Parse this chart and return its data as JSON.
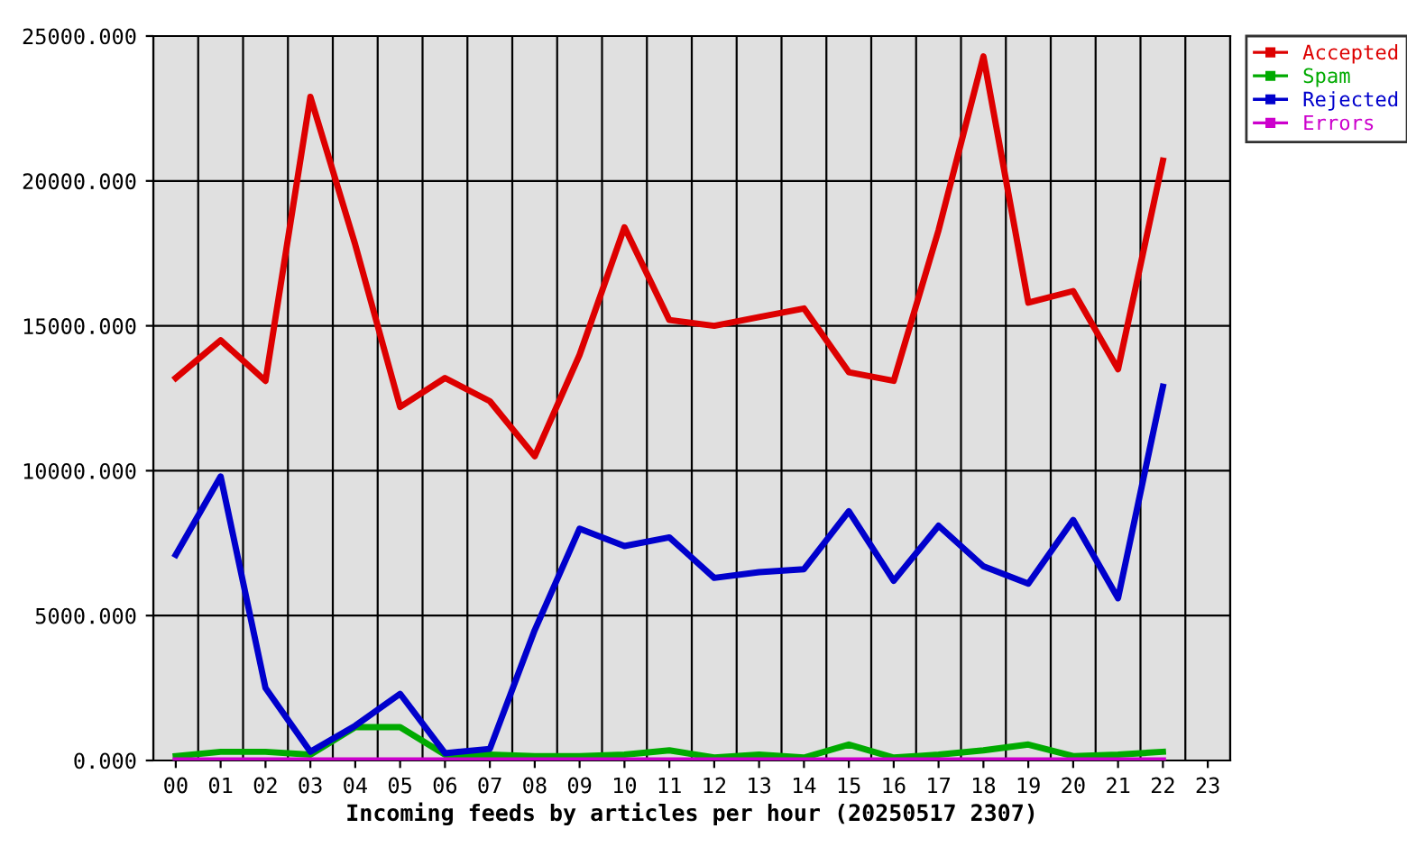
{
  "chart_data": {
    "type": "line",
    "xlabel": "Incoming feeds by articles per hour (20250517 2307)",
    "categories": [
      "00",
      "01",
      "02",
      "03",
      "04",
      "05",
      "06",
      "07",
      "08",
      "09",
      "10",
      "11",
      "12",
      "13",
      "14",
      "15",
      "16",
      "17",
      "18",
      "19",
      "20",
      "21",
      "22",
      "23"
    ],
    "series": [
      {
        "name": "Accepted",
        "color": "#dd0000",
        "values": [
          13200,
          14500,
          13100,
          22900,
          17800,
          12200,
          13200,
          12400,
          10500,
          14000,
          18400,
          15200,
          15000,
          15300,
          15600,
          13400,
          13100,
          18300,
          24300,
          15800,
          16200,
          13500,
          20700,
          null
        ]
      },
      {
        "name": "Spam",
        "color": "#00aa00",
        "values": [
          150,
          300,
          300,
          200,
          1150,
          1150,
          200,
          200,
          150,
          150,
          200,
          350,
          100,
          200,
          100,
          550,
          100,
          200,
          350,
          550,
          150,
          200,
          300,
          null
        ]
      },
      {
        "name": "Rejected",
        "color": "#0000cc",
        "values": [
          7100,
          9800,
          2500,
          300,
          1200,
          2300,
          250,
          400,
          4500,
          8000,
          7400,
          7700,
          6300,
          6500,
          6600,
          8600,
          6200,
          8100,
          6700,
          6100,
          8300,
          5600,
          12900,
          null
        ]
      },
      {
        "name": "Errors",
        "color": "#cc00cc",
        "values": [
          0,
          0,
          0,
          0,
          0,
          0,
          0,
          0,
          0,
          0,
          0,
          0,
          0,
          0,
          0,
          0,
          0,
          0,
          0,
          0,
          0,
          0,
          0,
          null
        ]
      }
    ],
    "ylim": [
      0,
      25000
    ],
    "yticks": [
      {
        "value": 0,
        "label": "0.000"
      },
      {
        "value": 5000,
        "label": "5000.000"
      },
      {
        "value": 10000,
        "label": "10000.000"
      },
      {
        "value": 15000,
        "label": "15000.000"
      },
      {
        "value": 20000,
        "label": "20000.000"
      },
      {
        "value": 25000,
        "label": "25000.000"
      }
    ],
    "grid": true,
    "legend": "top right",
    "marker": "none",
    "line_style": "solid"
  }
}
